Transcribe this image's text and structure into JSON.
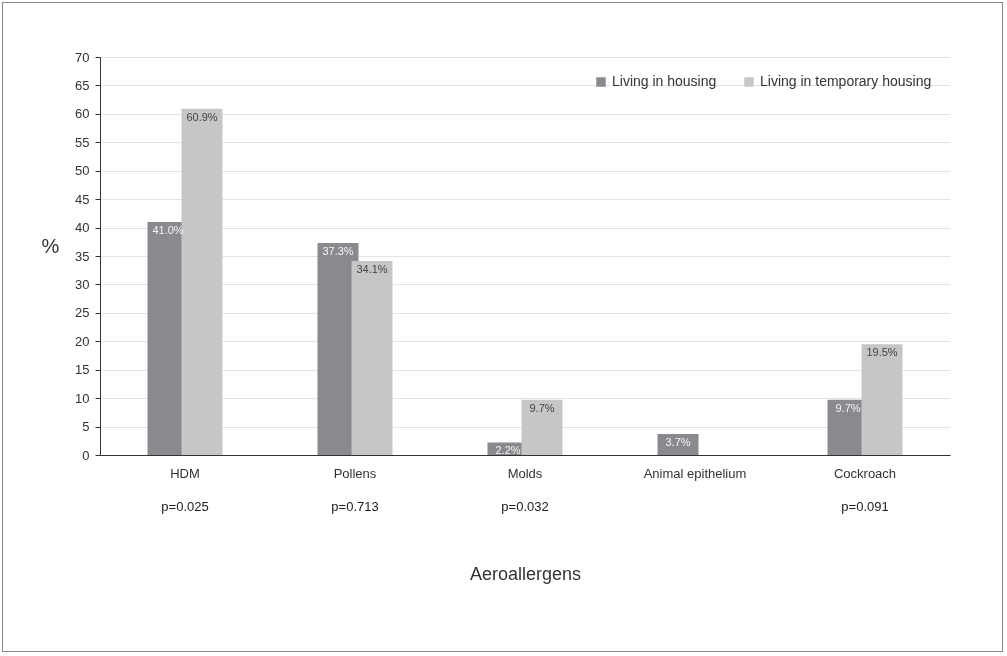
{
  "chart_data": {
    "type": "bar",
    "xlabel": "Aeroallergens",
    "ylabel": "%",
    "categories": [
      "HDM",
      "Pollens",
      "Molds",
      "Animal epithelium",
      "Cockroach"
    ],
    "series": [
      {
        "name": "Living in housing",
        "color": "#8a8a8e",
        "values": [
          41.0,
          37.3,
          2.2,
          3.7,
          9.7
        ],
        "value_labels": [
          "41.0%",
          "37.3%",
          "2.2%",
          "3.7%",
          "9.7%"
        ]
      },
      {
        "name": "Living in temporary housing",
        "color": "#c6c6c8",
        "values": [
          60.9,
          34.1,
          9.7,
          null,
          19.5
        ],
        "value_labels": [
          "60.9%",
          "34.1%",
          "9.7%",
          null,
          "19.5%"
        ]
      }
    ],
    "ylim": [
      0,
      70
    ],
    "yticks": [
      0,
      5,
      10,
      15,
      20,
      25,
      30,
      35,
      40,
      45,
      50,
      55,
      60,
      65,
      70
    ],
    "grid": "y",
    "legend": "top right",
    "annotations": [
      "p=0.025",
      "p=0.713",
      "p=0.032",
      "p=0.091"
    ]
  }
}
